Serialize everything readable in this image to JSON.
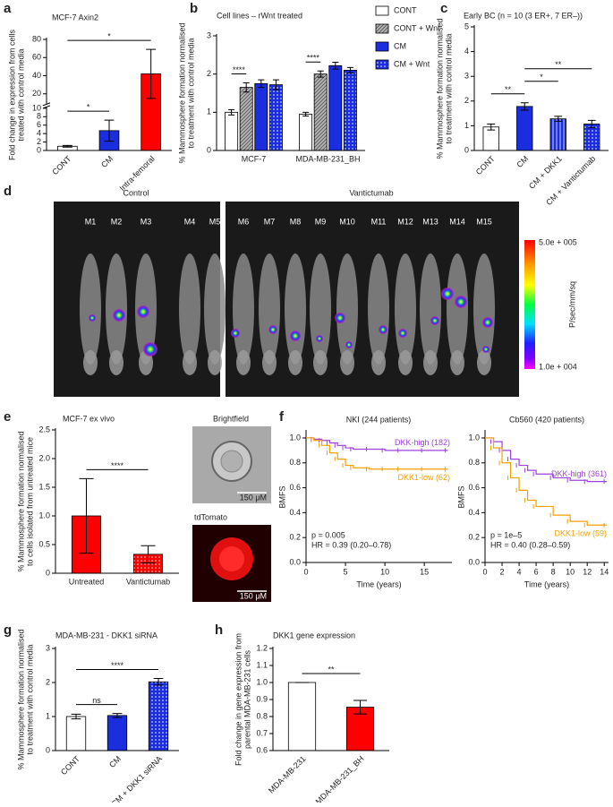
{
  "chart_data": [
    {
      "type": "bar",
      "label": "a",
      "title": "MCF-7 Axin2",
      "ylabel": [
        "Fold change in expression from cells",
        "treated with control media"
      ],
      "categories": [
        "CONT",
        "CM",
        "Intra-femoral"
      ],
      "series": [
        {
          "values": [
            1,
            4.7,
            42
          ],
          "errors": [
            0.2,
            2.5,
            27
          ],
          "colors": [
            "#ffffff",
            "#1a2ee0",
            "#ff0000"
          ]
        }
      ],
      "ylim": [
        0,
        80
      ],
      "axis_break": 10,
      "yticks": [
        0,
        2,
        4,
        6,
        8,
        10,
        20,
        40,
        60,
        80
      ],
      "comparisons": [
        {
          "between": [
            "CONT",
            "CM"
          ],
          "label": "*"
        },
        {
          "between": [
            "CONT",
            "Intra-femoral"
          ],
          "label": "*"
        }
      ]
    },
    {
      "type": "bar",
      "label": "b",
      "title": "Cell lines – rWnt treated",
      "ylabel": [
        "% Mammosphere formation normalised",
        "to treatment with control media"
      ],
      "categories": [
        "MCF-7",
        "MDA-MB-231_BH"
      ],
      "series": [
        {
          "name": "CONT",
          "color": "#ffffff",
          "values": [
            1.0,
            0.95
          ],
          "errors": [
            0.07,
            0.05
          ]
        },
        {
          "name": "CONT + Wnt",
          "color": "#b0b0b0",
          "pattern": "hatch",
          "values": [
            1.65,
            2.0
          ],
          "errors": [
            0.12,
            0.08
          ]
        },
        {
          "name": "CM",
          "color": "#1a2ee0",
          "values": [
            1.75,
            2.22
          ],
          "errors": [
            0.1,
            0.09
          ]
        },
        {
          "name": "CM + Wnt",
          "color": "#1a2ee0",
          "pattern": "dots",
          "values": [
            1.72,
            2.1
          ],
          "errors": [
            0.13,
            0.07
          ]
        }
      ],
      "ylim": [
        0,
        3
      ],
      "yticks": [
        0,
        1,
        2,
        3
      ],
      "legend": "right",
      "comparisons": [
        {
          "group": "MCF-7",
          "between": [
            "CONT",
            "CONT + Wnt"
          ],
          "label": "****"
        },
        {
          "group": "MDA-MB-231_BH",
          "between": [
            "CONT",
            "CONT + Wnt"
          ],
          "label": "****"
        }
      ]
    },
    {
      "type": "bar",
      "label": "c",
      "title": "Early BC (n = 10 (3 ER+, 7 ER–))",
      "ylabel": [
        "% Mammosphere formation normalised",
        "to treatment with control media"
      ],
      "categories": [
        "CONT",
        "CM",
        "CM + DKK1",
        "CM + Vantictumab"
      ],
      "series": [
        {
          "values": [
            0.95,
            1.78,
            1.28,
            1.07
          ],
          "errors": [
            0.12,
            0.15,
            0.1,
            0.15
          ],
          "colors": [
            "#ffffff",
            "#1a2ee0",
            "#1a2ee0",
            "#1a2ee0"
          ],
          "patterns": [
            "solid",
            "solid",
            "stripes",
            "dots"
          ]
        }
      ],
      "ylim": [
        0,
        5
      ],
      "yticks": [
        0,
        1,
        2,
        3,
        4,
        5
      ],
      "comparisons": [
        {
          "between": [
            "CONT",
            "CM"
          ],
          "label": "**"
        },
        {
          "between": [
            "CM",
            "CM + DKK1"
          ],
          "label": "*"
        },
        {
          "between": [
            "CM",
            "CM + Vantictumab"
          ],
          "label": "**"
        }
      ]
    },
    {
      "type": "bar",
      "label": "e",
      "title": "MCF-7 ex vivo",
      "ylabel": [
        "% Mammosphere formation normalised",
        "to cells isolated from untreated mice"
      ],
      "categories": [
        "Untreated",
        "Vantictumab"
      ],
      "series": [
        {
          "values": [
            1.0,
            0.33
          ],
          "errors": [
            0.65,
            0.15
          ],
          "colors": [
            "#ff0000",
            "#ff0000"
          ],
          "patterns": [
            "solid",
            "dots"
          ]
        }
      ],
      "ylim": [
        0,
        2.5
      ],
      "yticks": [
        {
          "value": 0,
          "label": "0"
        },
        0.5,
        {
          "value": 1,
          "label": "1.0"
        },
        1.5,
        {
          "value": 2,
          "label": "2.0"
        },
        2.5
      ],
      "comparisons": [
        {
          "between": [
            "Untreated",
            "Vantictumab"
          ],
          "label": "****"
        }
      ]
    },
    {
      "type": "line",
      "step": true,
      "label": "f",
      "title": "NKI (244 patients)",
      "ylabel": "BMFS",
      "xlabel": "Time (years)",
      "xlim": [
        0,
        18.5
      ],
      "xticks": [
        0,
        5,
        10,
        15
      ],
      "ylim": [
        0,
        1.05
      ],
      "yticks": [
        {
          "value": 0,
          "label": "0.0"
        },
        0.2,
        0.4,
        0.6,
        0.8,
        {
          "value": 1,
          "label": "1.0"
        }
      ],
      "series": [
        {
          "name": "DKK-high (182)",
          "color": "#a040e0",
          "x": [
            0,
            1,
            2,
            3,
            4,
            5,
            6,
            8,
            10,
            12,
            15,
            18
          ],
          "values": [
            1,
            0.99,
            0.98,
            0.96,
            0.94,
            0.92,
            0.91,
            0.91,
            0.9,
            0.9,
            0.9,
            0.9
          ]
        },
        {
          "name": "DKK1-low (62)",
          "color": "#f5a000",
          "x": [
            0,
            1,
            2,
            3,
            4,
            5,
            6,
            8,
            10,
            12,
            15,
            18
          ],
          "values": [
            1,
            0.98,
            0.94,
            0.88,
            0.83,
            0.78,
            0.76,
            0.75,
            0.75,
            0.75,
            0.75,
            0.75
          ]
        }
      ],
      "annotations": [
        "p = 0.005",
        "HR = 0.39 (0.20–0.78)"
      ]
    },
    {
      "type": "line",
      "step": true,
      "title": "Cb560 (420 patients)",
      "ylabel": "BMFS",
      "xlabel": "Time (years)",
      "xlim": [
        0,
        14.5
      ],
      "xticks": [
        0,
        2,
        4,
        6,
        8,
        10,
        12,
        14
      ],
      "ylim": [
        0,
        1.05
      ],
      "yticks": [
        {
          "value": 0,
          "label": "0.0"
        },
        0.2,
        0.4,
        0.6,
        0.8,
        {
          "value": 1,
          "label": "1.0"
        }
      ],
      "series": [
        {
          "name": "DKK-high (361)",
          "color": "#a040e0",
          "x": [
            0,
            1,
            2,
            3,
            4,
            5,
            6,
            8,
            10,
            12,
            14.3
          ],
          "values": [
            1,
            0.97,
            0.9,
            0.83,
            0.78,
            0.74,
            0.71,
            0.68,
            0.66,
            0.65,
            0.65
          ]
        },
        {
          "name": "DKK1-low (59)",
          "color": "#f5a000",
          "x": [
            0,
            1,
            2,
            3,
            4,
            5,
            6,
            8,
            10,
            12,
            14.3
          ],
          "values": [
            1,
            0.92,
            0.8,
            0.68,
            0.58,
            0.5,
            0.45,
            0.38,
            0.33,
            0.3,
            0.3
          ]
        }
      ],
      "annotations": [
        "p = 1e–5",
        "HR = 0.40 (0.28–0.59)"
      ]
    },
    {
      "type": "bar",
      "label": "g",
      "title": "MDA-MB-231 - DKK1 siRNA",
      "ylabel": [
        "% Mammosphere formation normalised",
        "to treatment with control media"
      ],
      "categories": [
        "CONT",
        "CM",
        "CM + DKK1 siRNA"
      ],
      "series": [
        {
          "values": [
            1.0,
            1.03,
            2.02
          ],
          "errors": [
            0.07,
            0.06,
            0.1
          ],
          "colors": [
            "#ffffff",
            "#1a2ee0",
            "#1a2ee0"
          ],
          "patterns": [
            "solid",
            "solid",
            "dots"
          ]
        }
      ],
      "ylim": [
        0,
        3
      ],
      "yticks": [
        0,
        1,
        2,
        3
      ],
      "comparisons": [
        {
          "between": [
            "CONT",
            "CM"
          ],
          "label": "ns"
        },
        {
          "between": [
            "CONT",
            "CM + DKK1 siRNA"
          ],
          "label": "****"
        }
      ]
    },
    {
      "type": "bar",
      "label": "h",
      "title": "DKK1 gene expression",
      "ylabel": [
        "Fold change in gene expression from",
        "parental MDA-MB-231 cells"
      ],
      "categories": [
        "MDA-MB-231",
        "MDA-MB-231_BH"
      ],
      "series": [
        {
          "values": [
            1.0,
            0.855
          ],
          "errors": [
            0,
            0.04
          ],
          "colors": [
            "#ffffff",
            "#ff0000"
          ]
        }
      ],
      "ylim": [
        0.6,
        1.2
      ],
      "yticks": [
        0.6,
        0.7,
        0.8,
        0.9,
        {
          "value": 1,
          "label": "1.0"
        },
        1.1,
        1.2
      ],
      "comparisons": [
        {
          "between": [
            "MDA-MB-231",
            "MDA-MB-231_BH"
          ],
          "label": "**"
        }
      ]
    }
  ],
  "imaging": {
    "label": "d",
    "groups": [
      "Control",
      "Vantictumab"
    ],
    "mice": [
      "M1",
      "M2",
      "M3",
      "M4",
      "M5",
      "M6",
      "M7",
      "M8",
      "M9",
      "M10",
      "M11",
      "M12",
      "M13",
      "M14",
      "M15"
    ],
    "colorbar": {
      "max": "5.0e + 005",
      "min": "1.0e + 004",
      "unit": "P/sec/mm/sq"
    }
  },
  "micrographs": [
    {
      "title": "Brightfield",
      "scale": "150 μM"
    },
    {
      "title": "tdTomato",
      "scale": "150 μM"
    }
  ]
}
